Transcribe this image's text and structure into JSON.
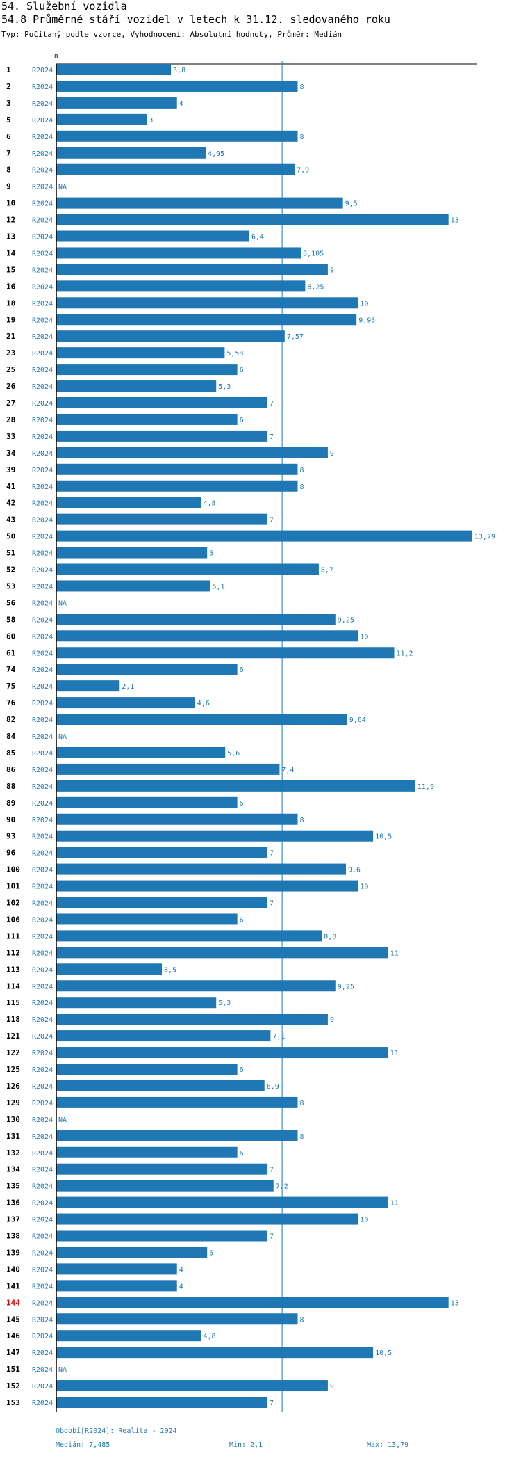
{
  "title": "54. Služební vozidla",
  "subtitle": "54.8 Průměrné stáří vozidel v letech k 31.12. sledovaného roku",
  "type_line": "Typ: Počítaný podle vzorce, Vyhodnocení: Absolutní hodnoty, Průměr: Medián",
  "colors": {
    "bar": "#1f77b4",
    "highlight": "#e60000"
  },
  "chart_data": {
    "type": "bar",
    "orientation": "horizontal",
    "axis_zero_label": "0",
    "xlim": [
      0,
      13.79
    ],
    "median_line": 7.485,
    "highlight_category": "144",
    "series": [
      {
        "name": "R2024",
        "period": "R2024",
        "rows": [
          {
            "id": "1",
            "value": 3.8,
            "label": "3,8"
          },
          {
            "id": "2",
            "value": 8,
            "label": "8"
          },
          {
            "id": "3",
            "value": 4,
            "label": "4"
          },
          {
            "id": "5",
            "value": 3,
            "label": "3"
          },
          {
            "id": "6",
            "value": 8,
            "label": "8"
          },
          {
            "id": "7",
            "value": 4.95,
            "label": "4,95"
          },
          {
            "id": "8",
            "value": 7.9,
            "label": "7,9"
          },
          {
            "id": "9",
            "value": null,
            "label": "NA"
          },
          {
            "id": "10",
            "value": 9.5,
            "label": "9,5"
          },
          {
            "id": "12",
            "value": 13,
            "label": "13"
          },
          {
            "id": "13",
            "value": 6.4,
            "label": "6,4"
          },
          {
            "id": "14",
            "value": 8.105,
            "label": "8,105"
          },
          {
            "id": "15",
            "value": 9,
            "label": "9"
          },
          {
            "id": "16",
            "value": 8.25,
            "label": "8,25"
          },
          {
            "id": "18",
            "value": 10,
            "label": "10"
          },
          {
            "id": "19",
            "value": 9.95,
            "label": "9,95"
          },
          {
            "id": "21",
            "value": 7.57,
            "label": "7,57"
          },
          {
            "id": "23",
            "value": 5.58,
            "label": "5,58"
          },
          {
            "id": "25",
            "value": 6,
            "label": "6"
          },
          {
            "id": "26",
            "value": 5.3,
            "label": "5,3"
          },
          {
            "id": "27",
            "value": 7,
            "label": "7"
          },
          {
            "id": "28",
            "value": 6,
            "label": "6"
          },
          {
            "id": "33",
            "value": 7,
            "label": "7"
          },
          {
            "id": "34",
            "value": 9,
            "label": "9"
          },
          {
            "id": "39",
            "value": 8,
            "label": "8"
          },
          {
            "id": "41",
            "value": 8,
            "label": "8"
          },
          {
            "id": "42",
            "value": 4.8,
            "label": "4,8"
          },
          {
            "id": "43",
            "value": 7,
            "label": "7"
          },
          {
            "id": "50",
            "value": 13.79,
            "label": "13,79"
          },
          {
            "id": "51",
            "value": 5,
            "label": "5"
          },
          {
            "id": "52",
            "value": 8.7,
            "label": "8,7"
          },
          {
            "id": "53",
            "value": 5.1,
            "label": "5,1"
          },
          {
            "id": "56",
            "value": null,
            "label": "NA"
          },
          {
            "id": "58",
            "value": 9.25,
            "label": "9,25"
          },
          {
            "id": "60",
            "value": 10,
            "label": "10"
          },
          {
            "id": "61",
            "value": 11.2,
            "label": "11,2"
          },
          {
            "id": "74",
            "value": 6,
            "label": "6"
          },
          {
            "id": "75",
            "value": 2.1,
            "label": "2,1"
          },
          {
            "id": "76",
            "value": 4.6,
            "label": "4,6"
          },
          {
            "id": "82",
            "value": 9.64,
            "label": "9,64"
          },
          {
            "id": "84",
            "value": null,
            "label": "NA"
          },
          {
            "id": "85",
            "value": 5.6,
            "label": "5,6"
          },
          {
            "id": "86",
            "value": 7.4,
            "label": "7,4"
          },
          {
            "id": "88",
            "value": 11.9,
            "label": "11,9"
          },
          {
            "id": "89",
            "value": 6,
            "label": "6"
          },
          {
            "id": "90",
            "value": 8,
            "label": "8"
          },
          {
            "id": "93",
            "value": 10.5,
            "label": "10,5"
          },
          {
            "id": "96",
            "value": 7,
            "label": "7"
          },
          {
            "id": "100",
            "value": 9.6,
            "label": "9,6"
          },
          {
            "id": "101",
            "value": 10,
            "label": "10"
          },
          {
            "id": "102",
            "value": 7,
            "label": "7"
          },
          {
            "id": "106",
            "value": 6,
            "label": "6"
          },
          {
            "id": "111",
            "value": 8.8,
            "label": "8,8"
          },
          {
            "id": "112",
            "value": 11,
            "label": "11"
          },
          {
            "id": "113",
            "value": 3.5,
            "label": "3,5"
          },
          {
            "id": "114",
            "value": 9.25,
            "label": "9,25"
          },
          {
            "id": "115",
            "value": 5.3,
            "label": "5,3"
          },
          {
            "id": "118",
            "value": 9,
            "label": "9"
          },
          {
            "id": "121",
            "value": 7.1,
            "label": "7,1"
          },
          {
            "id": "122",
            "value": 11,
            "label": "11"
          },
          {
            "id": "125",
            "value": 6,
            "label": "6"
          },
          {
            "id": "126",
            "value": 6.9,
            "label": "6,9"
          },
          {
            "id": "129",
            "value": 8,
            "label": "8"
          },
          {
            "id": "130",
            "value": null,
            "label": "NA"
          },
          {
            "id": "131",
            "value": 8,
            "label": "8"
          },
          {
            "id": "132",
            "value": 6,
            "label": "6"
          },
          {
            "id": "134",
            "value": 7,
            "label": "7"
          },
          {
            "id": "135",
            "value": 7.2,
            "label": "7,2"
          },
          {
            "id": "136",
            "value": 11,
            "label": "11"
          },
          {
            "id": "137",
            "value": 10,
            "label": "10"
          },
          {
            "id": "138",
            "value": 7,
            "label": "7"
          },
          {
            "id": "139",
            "value": 5,
            "label": "5"
          },
          {
            "id": "140",
            "value": 4,
            "label": "4"
          },
          {
            "id": "141",
            "value": 4,
            "label": "4"
          },
          {
            "id": "144",
            "value": 13,
            "label": "13"
          },
          {
            "id": "145",
            "value": 8,
            "label": "8"
          },
          {
            "id": "146",
            "value": 4.8,
            "label": "4,8"
          },
          {
            "id": "147",
            "value": 10.5,
            "label": "10,5"
          },
          {
            "id": "151",
            "value": null,
            "label": "NA"
          },
          {
            "id": "152",
            "value": 9,
            "label": "9"
          },
          {
            "id": "153",
            "value": 7,
            "label": "7"
          }
        ]
      }
    ]
  },
  "footer": {
    "period": "Období[R2024]: Realita - 2024",
    "median": "Medián: 7,485",
    "min": "Min: 2,1",
    "max": "Max: 13,79"
  }
}
